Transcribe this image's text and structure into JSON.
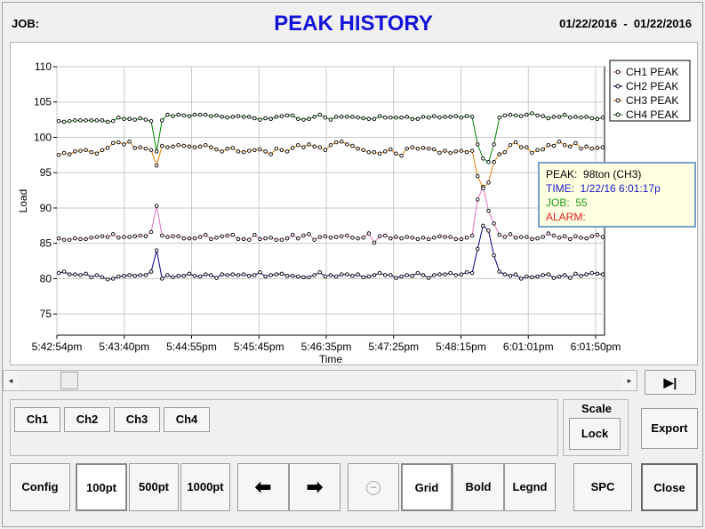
{
  "header": {
    "job_label": "JOB:",
    "title": "PEAK HISTORY",
    "date_range": "01/22/2016  -  01/22/2016"
  },
  "chart_data": {
    "type": "line",
    "title": "",
    "xlabel": "Time",
    "ylabel": "Load",
    "ylim": [
      72,
      110
    ],
    "yticks": [
      75,
      80,
      85,
      90,
      95,
      100,
      105,
      110
    ],
    "xtick_labels": [
      "5:42:54pm",
      "5:43:40pm",
      "5:44:55pm",
      "5:45:45pm",
      "5:46:35pm",
      "5:47:25pm",
      "5:48:15pm",
      "6:01:01pm",
      "6:01:50pm"
    ],
    "grid": true,
    "legend_position": "top-right",
    "series": [
      {
        "name": "CH1 PEAK",
        "color": "#e070c0",
        "values": [
          85.7,
          85.5,
          85.5,
          85.7,
          85.6,
          85.6,
          85.8,
          85.9,
          86.0,
          85.9,
          86.3,
          85.8,
          85.9,
          85.9,
          86.0,
          86.1,
          86.0,
          86.6,
          90.3,
          86.1,
          85.9,
          86.0,
          86.0,
          85.7,
          85.7,
          85.7,
          85.9,
          86.2,
          85.6,
          85.8,
          86.0,
          86.1,
          86.2,
          85.6,
          85.6,
          85.5,
          86.2,
          85.6,
          85.7,
          85.8,
          85.5,
          85.5,
          85.7,
          86.2,
          85.7,
          86.1,
          86.3,
          85.5,
          85.9,
          86.0,
          85.8,
          85.9,
          86.0,
          86.1,
          85.8,
          85.7,
          85.8,
          86.4,
          85.1,
          86.0,
          86.1,
          85.7,
          85.9,
          85.7,
          85.9,
          85.8,
          85.6,
          85.8,
          85.6,
          85.8,
          86.0,
          85.9,
          85.9,
          85.6,
          85.6,
          85.8,
          86.1,
          91.2,
          93.0,
          89.6,
          87.8,
          86.2,
          85.9,
          86.3,
          85.8,
          85.9,
          85.9,
          85.6,
          85.7,
          85.9,
          86.4,
          86.1,
          85.8,
          86.0,
          85.6,
          86.0,
          85.8,
          85.7,
          86.0,
          86.2,
          85.9
        ]
      },
      {
        "name": "CH2 PEAK",
        "color": "#000080",
        "values": [
          80.8,
          81.0,
          80.6,
          80.6,
          80.5,
          80.7,
          80.2,
          80.5,
          80.2,
          79.9,
          80.0,
          80.3,
          80.4,
          80.5,
          80.4,
          80.5,
          80.5,
          81.0,
          84.0,
          80.0,
          80.5,
          80.2,
          80.4,
          80.4,
          80.7,
          80.4,
          80.3,
          80.6,
          80.5,
          80.1,
          80.6,
          80.5,
          80.6,
          80.5,
          80.6,
          80.4,
          80.5,
          80.9,
          80.3,
          80.5,
          80.6,
          80.7,
          80.4,
          80.4,
          80.3,
          80.2,
          80.2,
          80.5,
          80.9,
          80.3,
          80.5,
          80.3,
          80.6,
          80.6,
          80.4,
          80.6,
          80.2,
          80.3,
          80.5,
          80.8,
          80.5,
          80.5,
          80.1,
          80.3,
          80.5,
          80.4,
          80.8,
          80.5,
          80.1,
          80.5,
          80.6,
          80.6,
          80.8,
          80.5,
          80.6,
          80.9,
          80.8,
          84.2,
          87.5,
          86.8,
          83.3,
          81.0,
          80.6,
          80.4,
          80.6,
          80.0,
          80.3,
          80.2,
          80.3,
          80.5,
          80.6,
          80.1,
          80.3,
          80.5,
          80.1,
          80.7,
          80.4,
          80.6,
          80.8,
          80.7,
          80.6
        ]
      },
      {
        "name": "CH3 PEAK",
        "color": "#e08000",
        "values": [
          97.5,
          97.8,
          97.6,
          98.0,
          98.1,
          98.2,
          97.9,
          97.7,
          98.2,
          98.5,
          99.2,
          99.3,
          99.0,
          99.4,
          98.5,
          98.6,
          98.4,
          98.2,
          96.0,
          98.8,
          98.6,
          98.7,
          98.9,
          98.8,
          98.7,
          98.6,
          98.7,
          98.9,
          98.6,
          98.3,
          98.0,
          98.4,
          98.5,
          98.0,
          97.9,
          98.1,
          98.2,
          98.3,
          98.0,
          97.6,
          98.4,
          98.2,
          98.0,
          98.5,
          98.9,
          98.6,
          99.0,
          98.7,
          98.6,
          98.2,
          98.9,
          99.3,
          99.4,
          99.0,
          98.8,
          98.4,
          98.2,
          97.9,
          97.9,
          97.7,
          98.0,
          98.3,
          97.7,
          97.4,
          98.4,
          98.6,
          98.4,
          98.5,
          98.4,
          98.3,
          97.8,
          98.1,
          97.8,
          98.0,
          98.1,
          97.9,
          98.1,
          94.5,
          92.8,
          93.6,
          96.5,
          97.6,
          97.9,
          98.9,
          99.3,
          98.6,
          98.6,
          97.8,
          98.2,
          98.3,
          98.9,
          98.8,
          99.4,
          98.9,
          98.7,
          99.2,
          98.4,
          98.7,
          98.4,
          98.5,
          98.6
        ]
      },
      {
        "name": "CH4 PEAK",
        "color": "#008000",
        "values": [
          102.3,
          102.2,
          102.3,
          102.4,
          102.4,
          102.4,
          102.4,
          102.4,
          102.4,
          102.2,
          102.3,
          102.8,
          102.6,
          102.6,
          102.5,
          102.7,
          102.5,
          102.3,
          98.0,
          102.4,
          103.2,
          103.0,
          103.2,
          103.1,
          103.0,
          103.2,
          103.2,
          103.2,
          103.0,
          103.1,
          102.9,
          102.8,
          102.9,
          103.0,
          102.9,
          102.9,
          102.7,
          102.5,
          102.7,
          102.6,
          102.9,
          103.0,
          103.1,
          103.1,
          102.6,
          102.5,
          102.6,
          102.9,
          103.2,
          102.8,
          102.5,
          102.9,
          102.9,
          102.9,
          102.9,
          102.8,
          102.7,
          102.6,
          102.6,
          103.0,
          102.8,
          102.8,
          102.8,
          102.8,
          102.9,
          102.6,
          102.6,
          102.9,
          102.8,
          103.0,
          102.8,
          102.9,
          102.9,
          103.0,
          102.8,
          103.0,
          102.9,
          99.0,
          97.0,
          96.5,
          99.0,
          102.8,
          103.1,
          103.2,
          103.1,
          103.0,
          103.2,
          103.4,
          103.1,
          103.0,
          102.7,
          102.9,
          102.9,
          103.2,
          102.8,
          102.9,
          102.8,
          102.9,
          102.7,
          102.6,
          102.8
        ]
      }
    ]
  },
  "tooltip": {
    "peak": "PEAK:  98ton (CH3)",
    "time": "TIME:  1/22/16 6:01:17p",
    "job": "JOB:  55",
    "alarm": "ALARM:",
    "peak_color": "#000000",
    "time_color": "#1a1ac8",
    "job_color": "#1a9a1a",
    "alarm_color": "#e02020"
  },
  "scroll": {
    "left_arrow": "◂",
    "right_arrow": "▸",
    "end_label": "▶|"
  },
  "channels": [
    "Ch1",
    "Ch2",
    "Ch3",
    "Ch4"
  ],
  "scale": {
    "label": "Scale",
    "lock": "Lock"
  },
  "export_label": "Export",
  "bottom": {
    "config": "Config",
    "pt100": "100pt",
    "pt500": "500pt",
    "pt1000": "1000pt",
    "prev": "⬅",
    "next": "➡",
    "minus": "−",
    "grid": "Grid",
    "bold": "Bold",
    "legend": "Legnd",
    "spc": "SPC",
    "close": "Close"
  }
}
